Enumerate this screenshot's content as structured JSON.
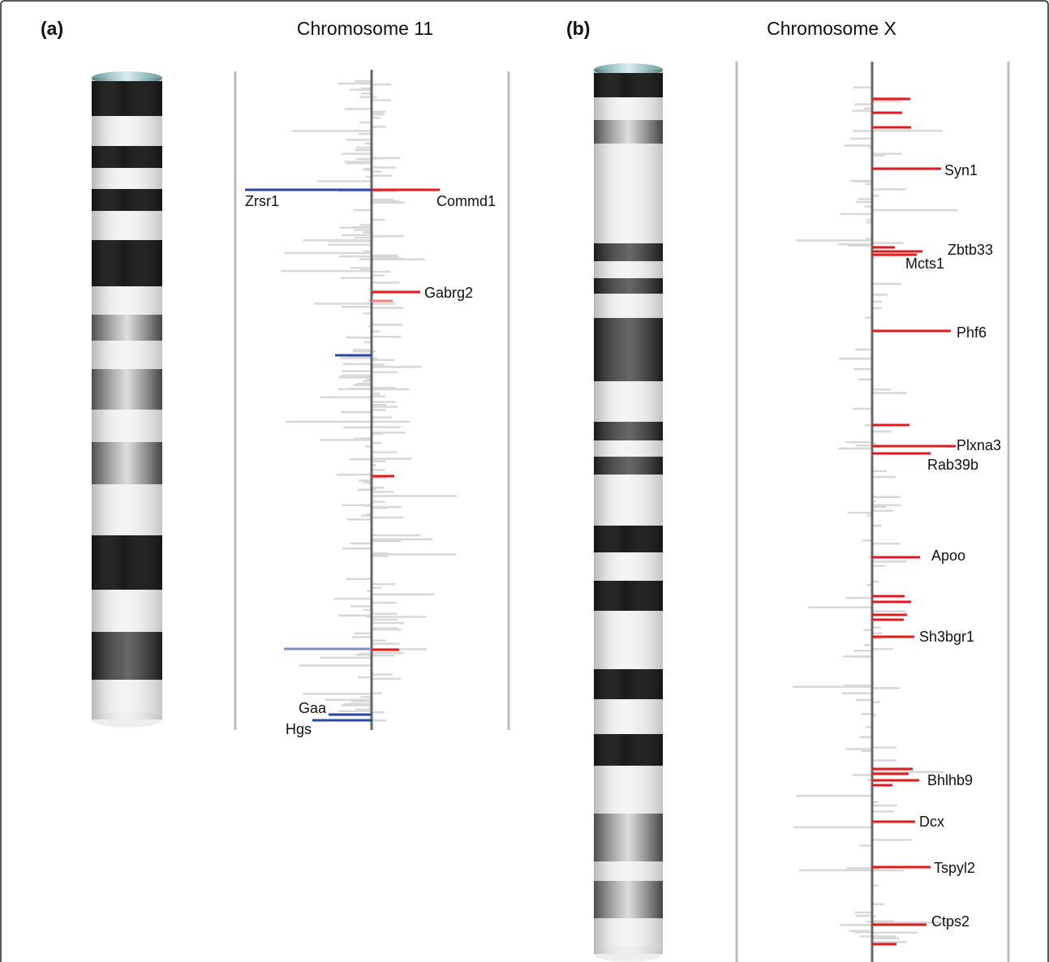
{
  "panels": [
    {
      "label": "(a)",
      "title": "Chromosome 11",
      "genes": [
        "Zrsr1",
        "Commd1",
        "Gabrg2",
        "Gaa",
        "Hgs"
      ]
    },
    {
      "label": "(b)",
      "title": "Chromosome X",
      "genes": [
        "Syn1",
        "Zbtb33",
        "Mcts1",
        "Phf6",
        "Plxna3",
        "Rab39b",
        "Apoo",
        "Sh3bgr1",
        "Bhlhb9",
        "Dcx",
        "Tspyl2",
        "Ctps2"
      ]
    }
  ]
}
